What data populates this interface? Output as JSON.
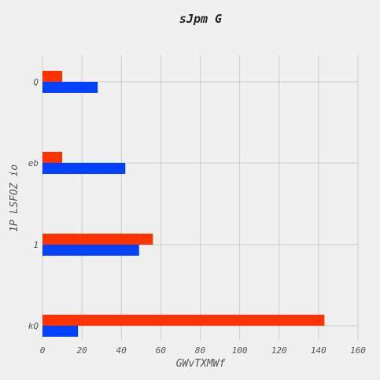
{
  "chart_data": {
    "type": "bar",
    "orientation": "horizontal",
    "title": "sJpm G",
    "xlabel": "GWvTXMWf",
    "ylabel": "1P LSFOZ io",
    "categories": [
      "kQ",
      "1",
      "eb",
      "Q"
    ],
    "xlim": [
      0,
      160
    ],
    "xticks": [
      0,
      20,
      40,
      60,
      80,
      100,
      120,
      140,
      160
    ],
    "grid": true,
    "series": [
      {
        "color": "#0040ff",
        "values": [
          18,
          49,
          42,
          28
        ]
      },
      {
        "color": "#ff3300",
        "values": [
          143,
          56,
          10,
          10
        ]
      }
    ]
  }
}
